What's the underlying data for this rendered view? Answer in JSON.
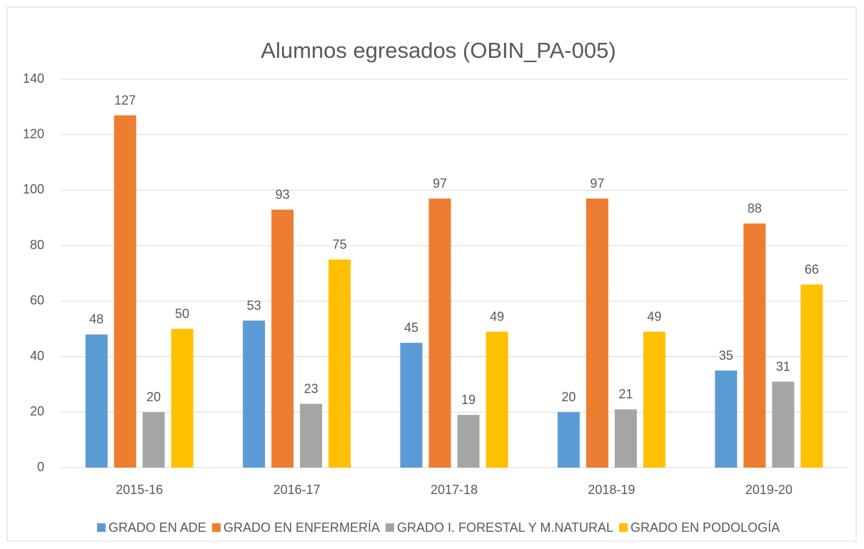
{
  "chart_data": {
    "type": "bar",
    "title": "Alumnos egresados (OBIN_PA-005)",
    "categories": [
      "2015-16",
      "2016-17",
      "2017-18",
      "2018-19",
      "2019-20"
    ],
    "series": [
      {
        "name": "GRADO EN ADE",
        "color": "#5b9bd5",
        "values": [
          48,
          53,
          45,
          20,
          35
        ]
      },
      {
        "name": "GRADO EN ENFERMERÍA",
        "color": "#ed7d31",
        "values": [
          127,
          93,
          97,
          97,
          88
        ]
      },
      {
        "name": "GRADO I. FORESTAL Y M.NATURAL",
        "color": "#a5a5a5",
        "values": [
          20,
          23,
          19,
          21,
          31
        ]
      },
      {
        "name": "GRADO EN PODOLOGÍA",
        "color": "#ffc000",
        "values": [
          50,
          75,
          49,
          49,
          66
        ]
      }
    ],
    "ylim": [
      0,
      140
    ],
    "yticks": [
      0,
      20,
      40,
      60,
      80,
      100,
      120,
      140
    ],
    "grid": true,
    "legend": "bottom"
  }
}
